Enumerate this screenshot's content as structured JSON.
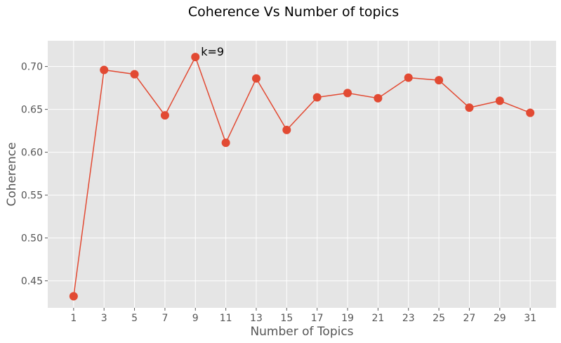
{
  "chart_data": {
    "type": "line",
    "title": "Coherence Vs Number of topics",
    "xlabel": "Number of Topics",
    "ylabel": "Coherence",
    "x": [
      1,
      3,
      5,
      7,
      9,
      11,
      13,
      15,
      17,
      19,
      21,
      23,
      25,
      27,
      29,
      31
    ],
    "xticks": [
      "1",
      "3",
      "5",
      "7",
      "9",
      "11",
      "13",
      "15",
      "17",
      "19",
      "21",
      "23",
      "25",
      "27",
      "29",
      "31"
    ],
    "series": [
      {
        "values": [
          0.432,
          0.696,
          0.691,
          0.643,
          0.711,
          0.611,
          0.686,
          0.626,
          0.664,
          0.669,
          0.663,
          0.687,
          0.684,
          0.652,
          0.66,
          0.646
        ]
      }
    ],
    "yticks": [
      "0.45",
      "0.50",
      "0.55",
      "0.60",
      "0.65",
      "0.70"
    ],
    "xlim": [
      -0.7,
      32.7
    ],
    "ylim": [
      0.4185,
      0.73
    ],
    "grid": true,
    "annotations": [
      {
        "text": "k=9",
        "x": 9,
        "y": 0.711
      }
    ],
    "colors": {
      "line": "#E24A33",
      "plot_bg": "#E5E5E5",
      "grid": "#FFFFFF"
    }
  }
}
